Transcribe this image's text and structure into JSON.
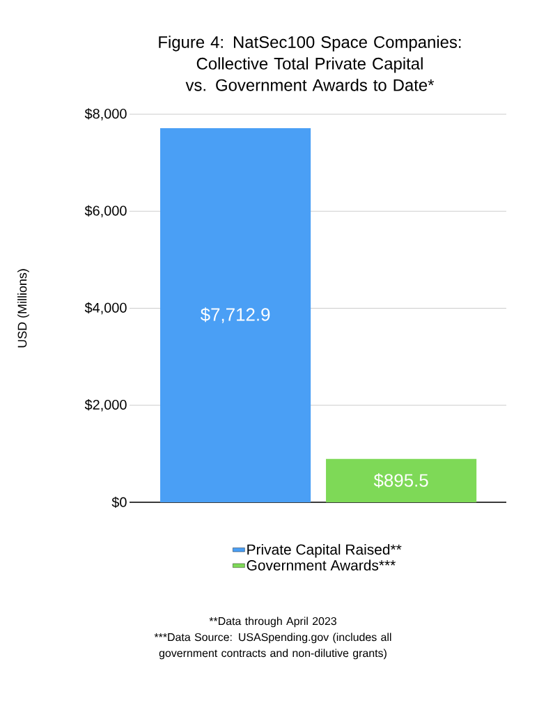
{
  "chart_data": {
    "type": "bar",
    "title": "Figure 4: NatSec100 Space Companies: Collective Total Private Capital vs. Government Awards to Date*",
    "ylabel": "USD (Millions)",
    "categories": [
      null,
      null
    ],
    "series": [
      {
        "name": "Private Capital Raised**",
        "color": "#4a9ff5",
        "values": [
          7712.9,
          null
        ],
        "value_labels": [
          "$7,712.9",
          null
        ]
      },
      {
        "name": "Government Awards***",
        "color": "#7ed957",
        "values": [
          null,
          895.5
        ],
        "value_labels": [
          null,
          "$895.5"
        ]
      }
    ],
    "ylim": [
      0,
      8000
    ],
    "yticks": [
      {
        "value": 0,
        "label": "$0"
      },
      {
        "value": 2000,
        "label": "$2,000"
      },
      {
        "value": 4000,
        "label": "$4,000"
      },
      {
        "value": 6000,
        "label": "$6,000"
      },
      {
        "value": 8000,
        "label": "$8,000"
      }
    ],
    "grid": "y",
    "legend": "bottom",
    "annotations": [
      "**Data through April 2023",
      "***Data Source: USASpending.gov (includes all government contracts and non-dilutive grants)"
    ]
  }
}
